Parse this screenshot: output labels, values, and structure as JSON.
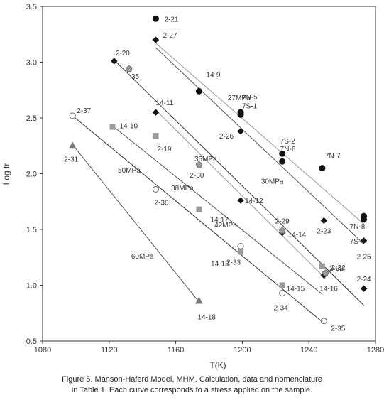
{
  "caption": {
    "line1": "Figure 5. Manson-Haferd Model, MHM. Calculation, data and nomenclature",
    "line2": "in Table 1.  Each curve corresponds to a stress applied on the sample."
  },
  "chart_data": {
    "type": "scatter",
    "xlabel": "T(K)",
    "ylabel": "Log tr",
    "xlim": [
      1080,
      1280
    ],
    "ylim": [
      0.5,
      3.5
    ],
    "xticks": [
      1080,
      1120,
      1160,
      1200,
      1240,
      1280
    ],
    "yticks": [
      0.5,
      1.0,
      1.5,
      2.0,
      2.5,
      3.0,
      3.5
    ],
    "xtick_labels": [
      "1080",
      "1120",
      "1160",
      "1200",
      "1240",
      "1280"
    ],
    "ytick_labels": [
      "0.5",
      "1.0",
      "1.5",
      "2.0",
      "2.5",
      "3.0",
      "3.5"
    ],
    "grid": false,
    "curves": [
      {
        "name": "27MPa",
        "x1": 1148,
        "y1": 3.17,
        "x2": 1273,
        "y2": 1.55,
        "color": "#999999"
      },
      {
        "name": "30MPa",
        "x1": 1148,
        "y1": 3.13,
        "x2": 1273,
        "y2": 1.37,
        "color": "#555555"
      },
      {
        "name": "35MPa",
        "x1": 1123,
        "y1": 3.02,
        "x2": 1273,
        "y2": 0.82,
        "color": "#333333"
      },
      {
        "name": "38MPa",
        "x1": 1148,
        "y1": 2.57,
        "x2": 1250,
        "y2": 1.06,
        "color": "#999999"
      },
      {
        "name": "42MPa",
        "x1": 1122,
        "y1": 2.43,
        "x2": 1248,
        "y2": 0.92,
        "color": "#555555"
      },
      {
        "name": "50MPa",
        "x1": 1098,
        "y1": 2.52,
        "x2": 1249,
        "y2": 0.66,
        "color": "#333333"
      },
      {
        "name": "60MPa",
        "x1": 1098,
        "y1": 2.26,
        "x2": 1174,
        "y2": 0.85,
        "color": "#555555"
      }
    ],
    "curve_labels": [
      {
        "text": "27MPa",
        "x": 1198,
        "y": 2.66
      },
      {
        "text": "30MPa",
        "x": 1218,
        "y": 1.91
      },
      {
        "text": "35MPa",
        "x": 1178,
        "y": 2.11
      },
      {
        "text": "38MPa",
        "x": 1164,
        "y": 1.85
      },
      {
        "text": "42MPa",
        "x": 1190,
        "y": 1.52
      },
      {
        "text": "50MPa",
        "x": 1132,
        "y": 2.01
      },
      {
        "text": "60MPa",
        "x": 1140,
        "y": 1.24
      }
    ],
    "series": [
      {
        "name": "filled-circle",
        "marker": "circle",
        "color": "#111111",
        "filled": true,
        "points": [
          {
            "x": 1148,
            "y": 3.39,
            "label": "2-21"
          },
          {
            "x": 1174,
            "y": 2.74,
            "label": "14-9"
          },
          {
            "x": 1199,
            "y": 2.55,
            "label": "7N-5"
          },
          {
            "x": 1199,
            "y": 2.53,
            "label": "7S-1"
          },
          {
            "x": 1224,
            "y": 2.18,
            "label": "7S-2"
          },
          {
            "x": 1224,
            "y": 2.11,
            "label": "7N-6"
          },
          {
            "x": 1248,
            "y": 2.05,
            "label": "7N-7"
          },
          {
            "x": 1273,
            "y": 1.62,
            "label": "7N-8"
          },
          {
            "x": 1273,
            "y": 1.59,
            "label": "7S-4"
          }
        ]
      },
      {
        "name": "filled-diamond",
        "marker": "diamond",
        "color": "#111111",
        "filled": true,
        "points": [
          {
            "x": 1148,
            "y": 3.2,
            "label": "2-27"
          },
          {
            "x": 1123,
            "y": 3.01,
            "label": "2-20"
          },
          {
            "x": 1148,
            "y": 2.55,
            "label": "14-11"
          },
          {
            "x": 1199,
            "y": 2.38,
            "label": "2-26"
          },
          {
            "x": 1199,
            "y": 1.76,
            "label": "14-12"
          },
          {
            "x": 1224,
            "y": 1.47,
            "label": "14-14"
          },
          {
            "x": 1249,
            "y": 1.58,
            "label": "2-23"
          },
          {
            "x": 1249,
            "y": 1.09,
            "label": "14-16"
          },
          {
            "x": 1273,
            "y": 1.4,
            "label": "2-25"
          },
          {
            "x": 1273,
            "y": 0.97,
            "label": "2-24"
          }
        ]
      },
      {
        "name": "gray-pentagon",
        "marker": "pentagon",
        "color": "#999999",
        "filled": true,
        "points": [
          {
            "x": 1132,
            "y": 2.94,
            "label": "35"
          },
          {
            "x": 1174,
            "y": 2.08,
            "label": "2-30"
          },
          {
            "x": 1224,
            "y": 1.49,
            "label": "2-29"
          },
          {
            "x": 1250,
            "y": 1.11,
            "label": "2-32"
          }
        ]
      },
      {
        "name": "gray-square",
        "marker": "square",
        "color": "#9a9a9a",
        "filled": true,
        "points": [
          {
            "x": 1122,
            "y": 2.42,
            "label": "14-10"
          },
          {
            "x": 1148,
            "y": 2.34,
            "label": "2-19"
          },
          {
            "x": 1174,
            "y": 1.68,
            "label": "14-17"
          },
          {
            "x": 1199,
            "y": 1.3,
            "label": "14-13"
          },
          {
            "x": 1248,
            "y": 1.17,
            "label": "2-22"
          },
          {
            "x": 1224,
            "y": 1.0,
            "label": "14-15"
          }
        ]
      },
      {
        "name": "open-circle",
        "marker": "circle",
        "color": "#555555",
        "filled": false,
        "points": [
          {
            "x": 1098,
            "y": 2.52,
            "label": "2-37"
          },
          {
            "x": 1148,
            "y": 1.86,
            "label": "2-36"
          },
          {
            "x": 1199,
            "y": 1.35,
            "label": "2-33"
          },
          {
            "x": 1224,
            "y": 0.93,
            "label": "2-34"
          },
          {
            "x": 1249,
            "y": 0.68,
            "label": "2-35"
          }
        ]
      },
      {
        "name": "gray-triangle",
        "marker": "triangle",
        "color": "#7a7a7a",
        "filled": true,
        "points": [
          {
            "x": 1098,
            "y": 2.25,
            "label": "2-31"
          },
          {
            "x": 1174,
            "y": 0.86,
            "label": "14-18"
          }
        ]
      }
    ]
  }
}
